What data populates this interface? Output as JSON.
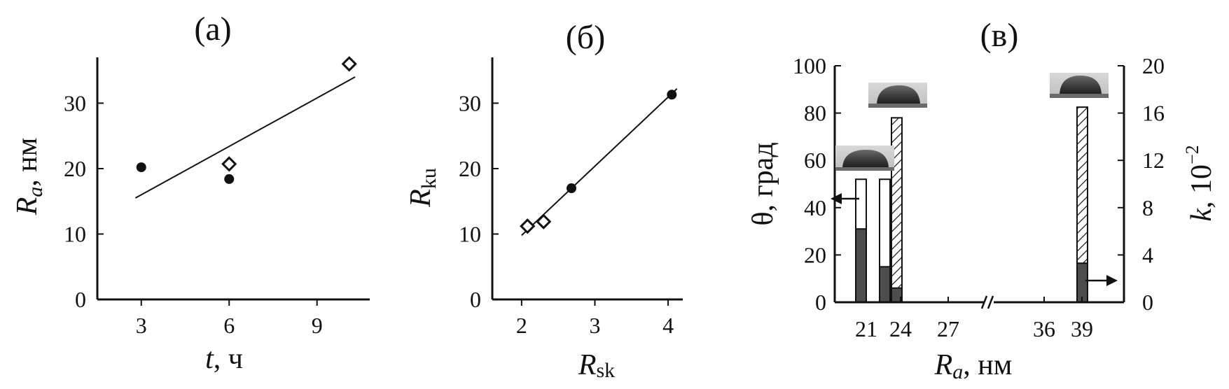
{
  "chart_data": [
    {
      "panel": "(а)",
      "type": "scatter",
      "xlabel_var": "t",
      "xlabel_unit": ", ч",
      "ylabel_var": "R",
      "ylabel_sub": "a",
      "ylabel_unit": ", нм",
      "xlim": [
        1.5,
        10.8
      ],
      "ylim": [
        0,
        37
      ],
      "x_ticks": [
        3,
        6,
        9
      ],
      "y_ticks": [
        0,
        10,
        20,
        30
      ],
      "series": [
        {
          "marker": "filled-circle",
          "points": [
            [
              3,
              20.2
            ],
            [
              6,
              18.4
            ]
          ]
        },
        {
          "marker": "open-diamond",
          "points": [
            [
              6,
              20.7
            ],
            [
              10.1,
              36
            ]
          ]
        }
      ],
      "fit_line": [
        [
          2.8,
          15.5
        ],
        [
          10.3,
          34
        ]
      ]
    },
    {
      "panel": "(б)",
      "type": "scatter",
      "xlabel_var": "R",
      "xlabel_sub": "sk",
      "ylabel_var": "R",
      "ylabel_sub": "ku",
      "xlim": [
        1.6,
        4.2
      ],
      "ylim": [
        0,
        37
      ],
      "x_ticks": [
        2,
        3,
        4
      ],
      "y_ticks": [
        0,
        10,
        20,
        30
      ],
      "series": [
        {
          "marker": "filled-circle",
          "points": [
            [
              2.68,
              17
            ],
            [
              4.05,
              31.3
            ]
          ]
        },
        {
          "marker": "open-diamond",
          "points": [
            [
              2.08,
              11.2
            ],
            [
              2.3,
              11.9
            ]
          ]
        }
      ],
      "fit_line": [
        [
          2.0,
          9.8
        ],
        [
          4.12,
          32.2
        ]
      ]
    },
    {
      "panel": "(в)",
      "type": "bar",
      "xlabel_var": "R",
      "xlabel_sub": "a",
      "xlabel_unit": ",  нм",
      "ylabel_left": "θ, град",
      "ylabel_right_var": "k",
      "ylabel_right_unit": ", 10",
      "ylabel_right_exp": "−2",
      "ylim_left": [
        0,
        100
      ],
      "ylim_right": [
        0,
        20
      ],
      "y_ticks_left": [
        0,
        20,
        40,
        60,
        80,
        100
      ],
      "y_ticks_right": [
        0,
        4,
        8,
        12,
        16,
        20
      ],
      "x_ticks": [
        "21",
        "24",
        "27",
        "36",
        "39"
      ],
      "axis_break": "//",
      "bars": [
        {
          "group": "21",
          "kind": "theta",
          "value": 52,
          "inner_dark_value": 31
        },
        {
          "group": "23",
          "kind": "theta",
          "value": 52,
          "inner_dark_value": 15
        },
        {
          "group": "23",
          "kind": "k",
          "value": 15.6,
          "inner_dark_value": 1.2
        },
        {
          "group": "39",
          "kind": "k",
          "value": 16.5,
          "inner_dark_value": 3.3
        }
      ],
      "annotations": [
        {
          "type": "arrow",
          "direction": "left",
          "refers_to": "theta axis"
        },
        {
          "type": "arrow",
          "direction": "right",
          "refers_to": "k axis"
        },
        {
          "type": "droplet-photo",
          "near": "21"
        },
        {
          "type": "droplet-photo",
          "near": "24"
        },
        {
          "type": "droplet-photo",
          "near": "39"
        }
      ]
    }
  ]
}
